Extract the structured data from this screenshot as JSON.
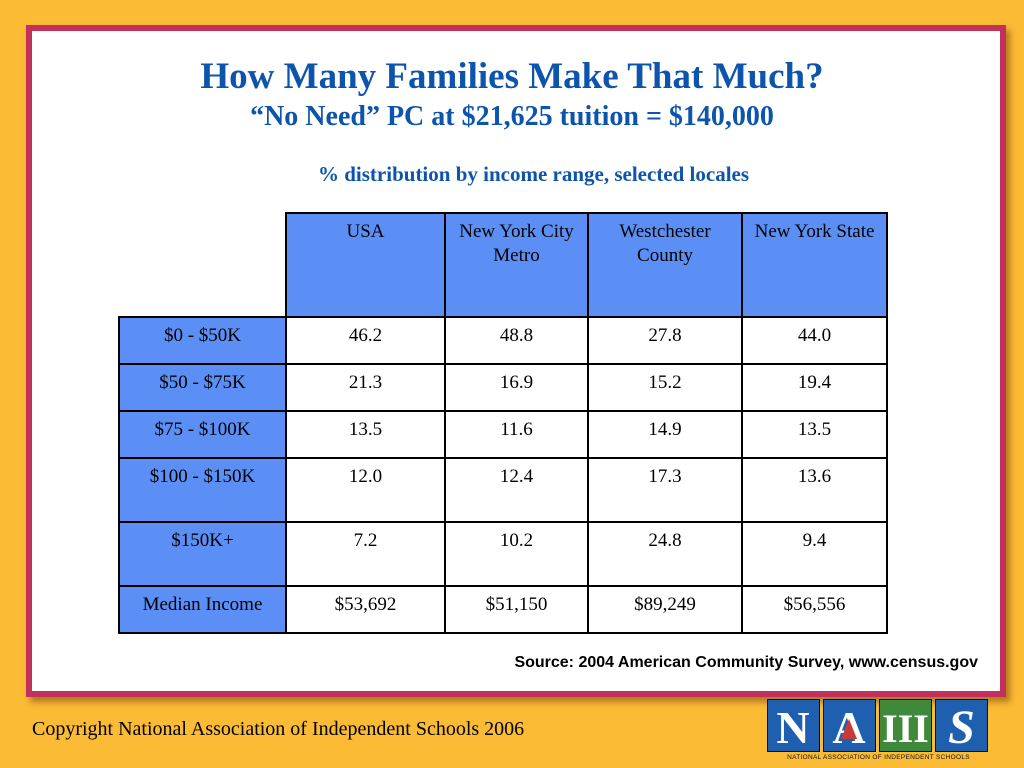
{
  "slide": {
    "title": "How Many Families Make That Much?",
    "subtitle": "“No Need” PC at $21,625 tuition = $140,000",
    "caption": "% distribution by income range, selected locales",
    "source": "Source:  2004 American Community Survey, www.census.gov",
    "copyright": "Copyright National Association of Independent Schools 2006"
  },
  "table": {
    "columns": [
      "USA",
      "New York City Metro",
      "Westchester County",
      "New York State"
    ],
    "rows": [
      {
        "label": "$0 - $50K",
        "values": [
          "46.2",
          "48.8",
          "27.8",
          "44.0"
        ]
      },
      {
        "label": "$50 - $75K",
        "values": [
          "21.3",
          "16.9",
          "15.2",
          "19.4"
        ]
      },
      {
        "label": "$75 - $100K",
        "values": [
          "13.5",
          "11.6",
          "14.9",
          "13.5"
        ]
      },
      {
        "label": "$100 - $150K",
        "values": [
          "12.0",
          "12.4",
          "17.3",
          "13.6"
        ]
      },
      {
        "label": "$150K+",
        "values": [
          "7.2",
          "10.2",
          "24.8",
          "9.4"
        ]
      },
      {
        "label": "Median Income",
        "values": [
          "$53,692",
          "$51,150",
          "$89,249",
          "$56,556"
        ]
      }
    ]
  },
  "logo": {
    "letters": [
      "N",
      "A",
      "III",
      "S"
    ],
    "text": "NATIONAL ASSOCIATION OF INDEPENDENT SCHOOLS",
    "colors": {
      "blue": "#1f5fb0",
      "green": "#3f8a3a",
      "red": "#c83a3a",
      "dark": "#1a1a1a"
    }
  },
  "colors": {
    "background": "#fbbb34",
    "frame": "#c2305c",
    "title": "#0d54ac",
    "table_header": "#5b8ff5"
  }
}
